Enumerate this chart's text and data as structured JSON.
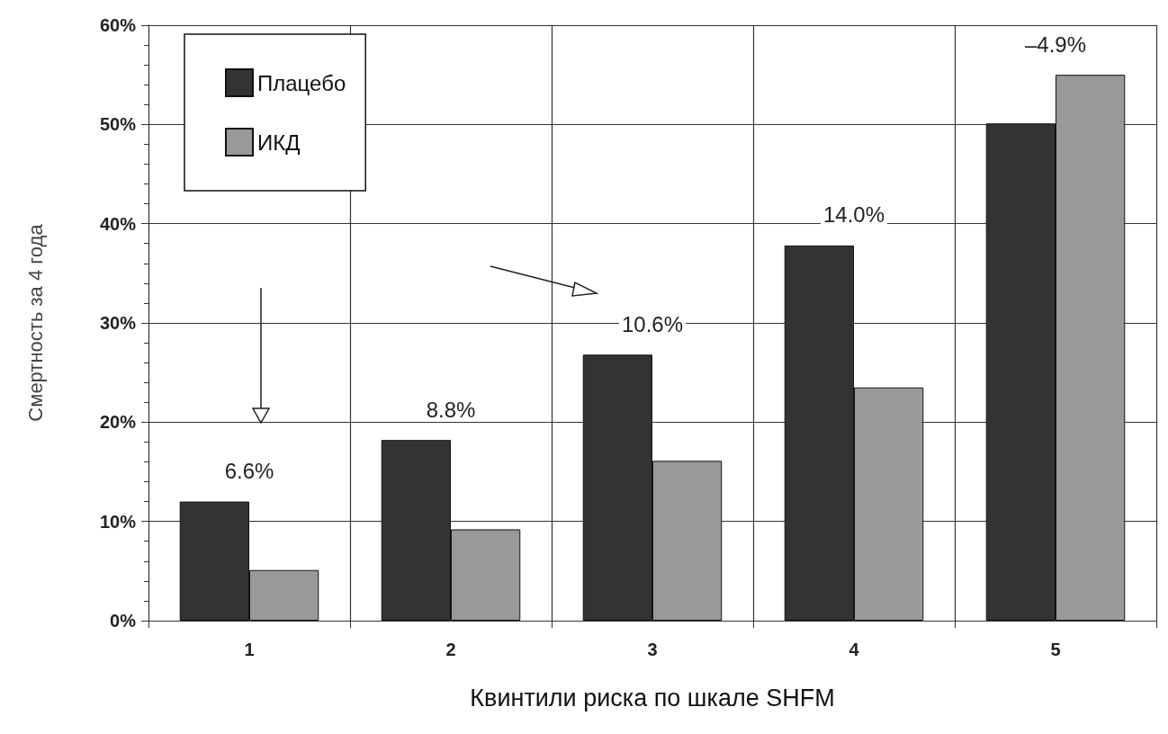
{
  "chart_data": {
    "type": "bar",
    "xlabel": "Квинтили риска по шкале SHFM",
    "ylabel": "Смертность за 4 года",
    "categories": [
      "1",
      "2",
      "3",
      "4",
      "5"
    ],
    "series": [
      {
        "name": "Плацебо",
        "color": "#333333",
        "values": [
          12,
          18.2,
          26.8,
          37.8,
          50.1
        ]
      },
      {
        "name": "ИКД",
        "color": "#999999",
        "values": [
          5.1,
          9.2,
          16.1,
          23.5,
          55
        ]
      }
    ],
    "ylim": [
      0,
      60
    ],
    "yticks": [
      {
        "value": 0,
        "label": "0%"
      },
      {
        "value": 10,
        "label": "10%"
      },
      {
        "value": 20,
        "label": "20%"
      },
      {
        "value": 30,
        "label": "30%"
      },
      {
        "value": 40,
        "label": "40%"
      },
      {
        "value": 50,
        "label": "50%"
      },
      {
        "value": 60,
        "label": "60%"
      }
    ],
    "annotations": [
      "6.6%",
      "8.8%",
      "10.6%",
      "14.0%",
      "–4.9%"
    ],
    "grid": true,
    "legend": "top left"
  }
}
